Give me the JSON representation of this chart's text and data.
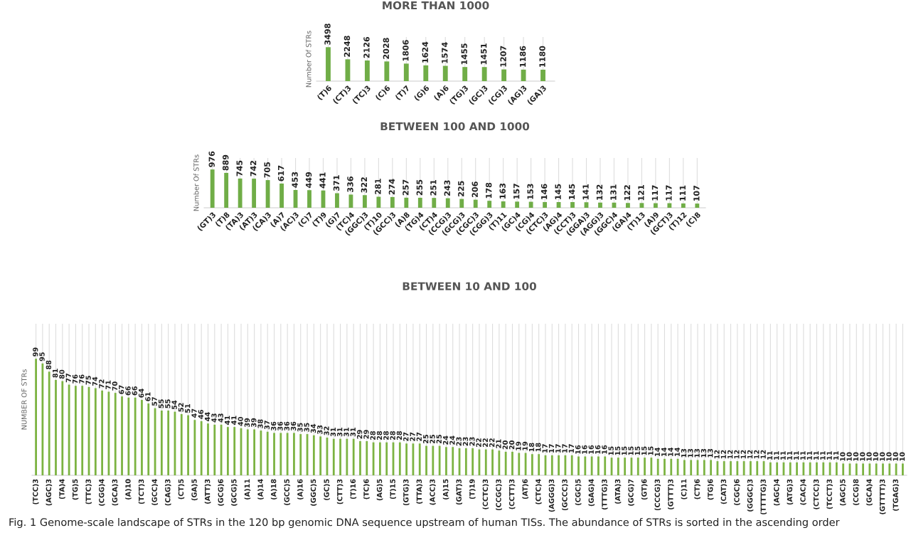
{
  "chart_data": [
    {
      "type": "bar",
      "title": "MORE THAN 1000",
      "ylabel": "Number Of STRs",
      "categories": [
        "(T)6",
        "(CT)3",
        "(TC)3",
        "(C)6",
        "(T)7",
        "(G)6",
        "(A)6",
        "(TG)3",
        "(GC)3",
        "(CG)3",
        "(AG)3",
        "(GA)3"
      ],
      "values": [
        3498,
        2248,
        2126,
        2028,
        1806,
        1624,
        1574,
        1455,
        1451,
        1207,
        1186,
        1180
      ],
      "color": "#70ad47",
      "data_labels": true,
      "grid": "x",
      "tick_labels": "x"
    },
    {
      "type": "bar",
      "title": "BETWEEN 100 AND 1000",
      "ylabel": "Number Of STRs",
      "categories": [
        "(GT)3",
        "(T)8",
        "(TA)3",
        "(AT)3",
        "(CA)3",
        "(A)7",
        "(AC)3",
        "(C)7",
        "(T)9",
        "(G)7",
        "(TC)4",
        "(GGC)3",
        "(T)10",
        "(GCC)3",
        "(A)8",
        "(TG)4",
        "(CT)4",
        "(CCG)3",
        "(GCG)3",
        "(CGC)3",
        "(CGG)3",
        "(T)11",
        "(GC)4",
        "(CG)4",
        "(CTC)3",
        "(AG)4",
        "(CCT)3",
        "(GGA)3",
        "(AGG)3",
        "(GGC)4",
        "(GA)4",
        "(T)13",
        "(A)9",
        "(GCT)3",
        "(T)12",
        "(C)8"
      ],
      "values": [
        976,
        889,
        745,
        742,
        705,
        617,
        453,
        449,
        441,
        371,
        336,
        322,
        281,
        274,
        257,
        255,
        251,
        243,
        225,
        206,
        178,
        163,
        157,
        153,
        146,
        145,
        145,
        141,
        132,
        131,
        122,
        121,
        117,
        117,
        111,
        107
      ],
      "color": "#70ad47",
      "data_labels": true,
      "grid": "x",
      "tick_labels": "x"
    },
    {
      "type": "bar",
      "title": "BETWEEN 10 AND 100",
      "ylabel": "NUMBER OF STRs",
      "categories": [
        "(TCC)3",
        null,
        "(AGC)3",
        null,
        "(TA)4",
        null,
        "(TG)5",
        null,
        "(TTC)3",
        null,
        "(CGG)4",
        null,
        "(GCA)3",
        null,
        "(A)10",
        null,
        "(TCT)3",
        null,
        "(GCC)4",
        null,
        "(CAG)3",
        null,
        "(CT)5",
        null,
        "(GA)5",
        null,
        "(ATT)3",
        null,
        "(GCG)6",
        null,
        "(GCG)5",
        null,
        "(A)11",
        null,
        "(A)14",
        null,
        "(A)18",
        null,
        "(GCC)5",
        null,
        "(A)16",
        null,
        "(GGC)5",
        null,
        "(GC)5",
        null,
        "(CTT)3",
        null,
        "(T)16",
        null,
        "(TC)6",
        null,
        "(AG)5",
        null,
        "(T)15",
        null,
        "(GTG)3",
        null,
        "(TTA)3",
        null,
        "(ACC)3",
        null,
        "(A)15",
        null,
        "(GAT)3",
        null,
        "(T)19",
        null,
        "(CCTC)3",
        null,
        "(CCGC)3",
        null,
        "(CCTT)3",
        null,
        "(AT)6",
        null,
        "(CTC)4",
        null,
        "(AGGG)3",
        null,
        "(GCCC)3",
        null,
        "(CGC)5",
        null,
        "(GAG)4",
        null,
        "(TTTG)3",
        null,
        "(ATA)3",
        null,
        "(GCG)7",
        null,
        "(GT)6",
        null,
        "(CCCG)3",
        null,
        "(GTTT)3",
        null,
        "(C)11",
        null,
        "(CT)6",
        null,
        "(TG)6",
        null,
        "(CAT)3",
        null,
        "(CGC)6",
        null,
        "(GGGC)3",
        null,
        "(TTTTG)3",
        null,
        "(AGC)4",
        null,
        "(ATG)3",
        null,
        "(CAC)4",
        null,
        "(CTCC)3",
        null,
        "(TCCT)3",
        null,
        "(AGC)5",
        null,
        "(CCG)8",
        null,
        "(GCA)4",
        null,
        "(GTTTT)3",
        null,
        "(TGAG)3",
        null
      ],
      "values": [
        99,
        95,
        88,
        81,
        80,
        77,
        76,
        76,
        75,
        74,
        72,
        71,
        70,
        67,
        66,
        66,
        64,
        61,
        57,
        55,
        55,
        54,
        52,
        51,
        47,
        46,
        44,
        43,
        43,
        41,
        41,
        40,
        39,
        39,
        38,
        37,
        36,
        36,
        36,
        36,
        35,
        35,
        34,
        33,
        32,
        31,
        31,
        31,
        31,
        29,
        29,
        28,
        28,
        28,
        28,
        28,
        27,
        27,
        27,
        25,
        25,
        25,
        24,
        24,
        23,
        23,
        23,
        22,
        22,
        22,
        21,
        20,
        20,
        19,
        19,
        18,
        18,
        17,
        17,
        17,
        17,
        17,
        16,
        16,
        16,
        16,
        16,
        15,
        15,
        15,
        15,
        15,
        15,
        15,
        14,
        14,
        14,
        14,
        13,
        13,
        13,
        13,
        13,
        12,
        12,
        12,
        12,
        12,
        12,
        12,
        12,
        11,
        11,
        11,
        11,
        11,
        11,
        11,
        11,
        11,
        11,
        11,
        10,
        10,
        10,
        10,
        10,
        10,
        10,
        10,
        10,
        10
      ],
      "color": "#7cb342",
      "data_labels": true,
      "grid": "x",
      "tick_labels": "x",
      "annotations": [
        "Fig. 1 Genome-scale landscape of STRs in the 120 bp genomic DNA sequence upstream of human TISs. The abundance of STRs is sorted in the ascending order"
      ]
    }
  ]
}
